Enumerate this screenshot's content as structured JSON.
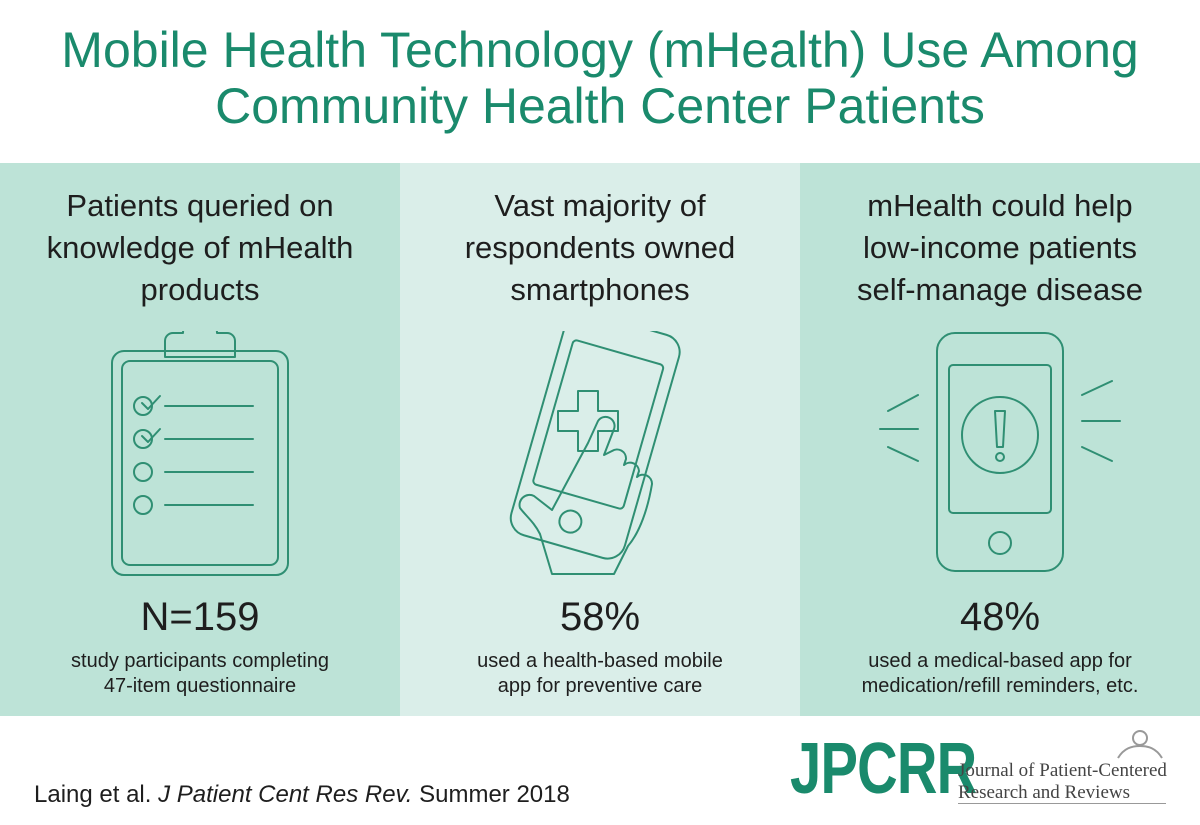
{
  "title": {
    "line1": "Mobile Health Technology (mHealth) Use Among",
    "line2": "Community Health Center Patients"
  },
  "panels": [
    {
      "heading": [
        "Patients queried on",
        "knowledge of mHealth",
        "products"
      ],
      "icon": "clipboard-checklist-icon",
      "stat": "N=159",
      "desc": [
        "study participants completing",
        "47-item questionnaire"
      ]
    },
    {
      "heading": [
        "Vast majority of",
        "respondents owned",
        "smartphones"
      ],
      "icon": "smartphone-touch-health-icon",
      "stat": "58%",
      "desc": [
        "used a health-based mobile",
        "app for preventive care"
      ]
    },
    {
      "heading": [
        "mHealth could help",
        "low-income patients",
        "self-manage disease"
      ],
      "icon": "smartphone-alert-icon",
      "stat": "48%",
      "desc": [
        "used a medical-based app for",
        "medication/refill reminders, etc."
      ]
    }
  ],
  "citation": {
    "authors": "Laing et al.",
    "journal": "J Patient Cent Res Rev.",
    "date": "Summer 2018"
  },
  "logo": {
    "mark": "JPCRR",
    "line1": "Journal of Patient-Centered",
    "line2": "Research and Reviews"
  },
  "colors": {
    "accent": "#1a8a6c",
    "panel_dark": "#bde3d7",
    "panel_light": "#daeee9",
    "icon_stroke": "#2f8f73"
  }
}
